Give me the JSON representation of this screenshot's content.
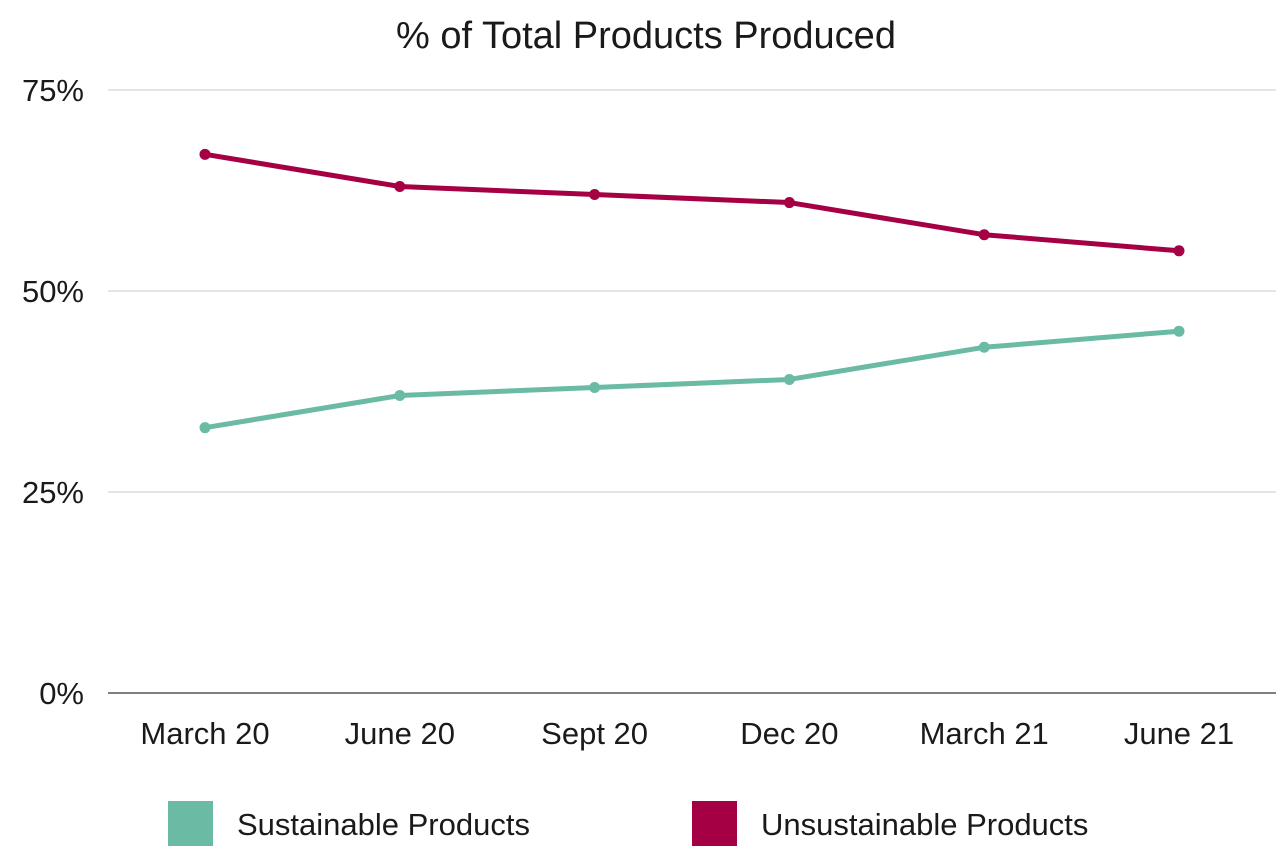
{
  "chart_data": {
    "type": "line",
    "title": "% of Total Products Produced",
    "xlabel": "",
    "ylabel": "",
    "categories": [
      "March 20",
      "June 20",
      "Sept 20",
      "Dec 20",
      "March 21",
      "June 21"
    ],
    "ylim": [
      0,
      75
    ],
    "yticks": [
      {
        "value": 0,
        "label": "0%"
      },
      {
        "value": 25,
        "label": "25%"
      },
      {
        "value": 50,
        "label": "50%"
      },
      {
        "value": 75,
        "label": "75%"
      }
    ],
    "grid": true,
    "legend_position": "bottom",
    "series": [
      {
        "name": "Sustainable Products",
        "color": "#6bbaa4",
        "values": [
          33,
          37,
          38,
          39,
          43,
          45
        ]
      },
      {
        "name": "Unsustainable Products",
        "color": "#a50044",
        "values": [
          67,
          63,
          62,
          61,
          57,
          55
        ]
      }
    ]
  }
}
